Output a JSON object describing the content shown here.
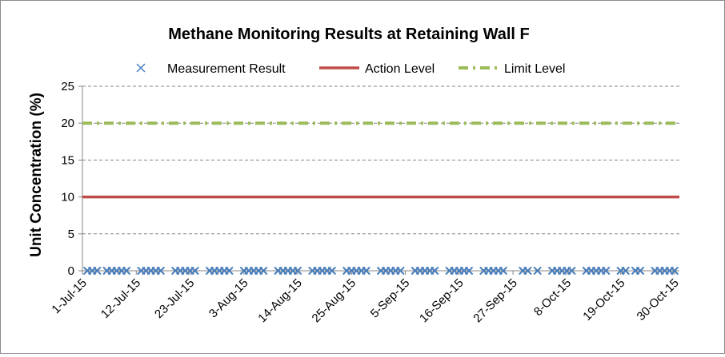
{
  "chart_data": {
    "type": "line",
    "title": "Methane Monitoring Results at Retaining Wall F",
    "xlabel": "",
    "ylabel": "Unit Concentration (%)",
    "ylim": [
      0,
      25
    ],
    "yticks": [
      0,
      5,
      10,
      15,
      20,
      25
    ],
    "xlim": [
      "2015-07-01",
      "2015-10-31"
    ],
    "xtick_labels": [
      "1-Jul-15",
      "12-Jul-15",
      "23-Jul-15",
      "3-Aug-15",
      "14-Aug-15",
      "25-Aug-15",
      "5-Sep-15",
      "16-Sep-15",
      "27-Sep-15",
      "8-Oct-15",
      "19-Oct-15",
      "30-Oct-15"
    ],
    "grid": "horizontal dashed",
    "legend_position": "top",
    "series": [
      {
        "name": "Measurement Result",
        "style": "markers",
        "marker": "x",
        "color": "#4a7ebb",
        "x": [
          "2015-07-02",
          "2015-07-03",
          "2015-07-04",
          "2015-07-06",
          "2015-07-07",
          "2015-07-08",
          "2015-07-09",
          "2015-07-10",
          "2015-07-13",
          "2015-07-14",
          "2015-07-15",
          "2015-07-16",
          "2015-07-17",
          "2015-07-20",
          "2015-07-21",
          "2015-07-22",
          "2015-07-23",
          "2015-07-24",
          "2015-07-27",
          "2015-07-28",
          "2015-07-29",
          "2015-07-30",
          "2015-07-31",
          "2015-08-03",
          "2015-08-04",
          "2015-08-05",
          "2015-08-06",
          "2015-08-07",
          "2015-08-10",
          "2015-08-11",
          "2015-08-12",
          "2015-08-13",
          "2015-08-14",
          "2015-08-17",
          "2015-08-18",
          "2015-08-19",
          "2015-08-20",
          "2015-08-21",
          "2015-08-24",
          "2015-08-25",
          "2015-08-26",
          "2015-08-27",
          "2015-08-28",
          "2015-08-31",
          "2015-09-01",
          "2015-09-02",
          "2015-09-03",
          "2015-09-04",
          "2015-09-07",
          "2015-09-08",
          "2015-09-09",
          "2015-09-10",
          "2015-09-11",
          "2015-09-14",
          "2015-09-15",
          "2015-09-16",
          "2015-09-17",
          "2015-09-18",
          "2015-09-21",
          "2015-09-22",
          "2015-09-23",
          "2015-09-24",
          "2015-09-25",
          "2015-09-29",
          "2015-09-30",
          "2015-10-02",
          "2015-10-05",
          "2015-10-06",
          "2015-10-07",
          "2015-10-08",
          "2015-10-09",
          "2015-10-12",
          "2015-10-13",
          "2015-10-14",
          "2015-10-15",
          "2015-10-16",
          "2015-10-19",
          "2015-10-20",
          "2015-10-22",
          "2015-10-23",
          "2015-10-26",
          "2015-10-27",
          "2015-10-28",
          "2015-10-29",
          "2015-10-30"
        ],
        "y": [
          0,
          0,
          0,
          0,
          0,
          0,
          0,
          0,
          0,
          0,
          0,
          0,
          0,
          0,
          0,
          0,
          0,
          0,
          0,
          0,
          0,
          0,
          0,
          0,
          0,
          0,
          0,
          0,
          0,
          0,
          0,
          0,
          0,
          0,
          0,
          0,
          0,
          0,
          0,
          0,
          0,
          0,
          0,
          0,
          0,
          0,
          0,
          0,
          0,
          0,
          0,
          0,
          0,
          0,
          0,
          0,
          0,
          0,
          0,
          0,
          0,
          0,
          0,
          0,
          0,
          0,
          0,
          0,
          0,
          0,
          0,
          0,
          0,
          0,
          0,
          0,
          0,
          0,
          0,
          0,
          0,
          0,
          0,
          0,
          0
        ]
      },
      {
        "name": "Action Level",
        "style": "solid",
        "color": "#be4b48",
        "x": [
          "2015-07-01",
          "2015-10-31"
        ],
        "y": [
          10,
          10
        ]
      },
      {
        "name": "Limit Level",
        "style": "dash-dot",
        "color": "#9bbb59",
        "x": [
          "2015-07-01",
          "2015-10-31"
        ],
        "y": [
          20,
          20
        ]
      }
    ]
  }
}
